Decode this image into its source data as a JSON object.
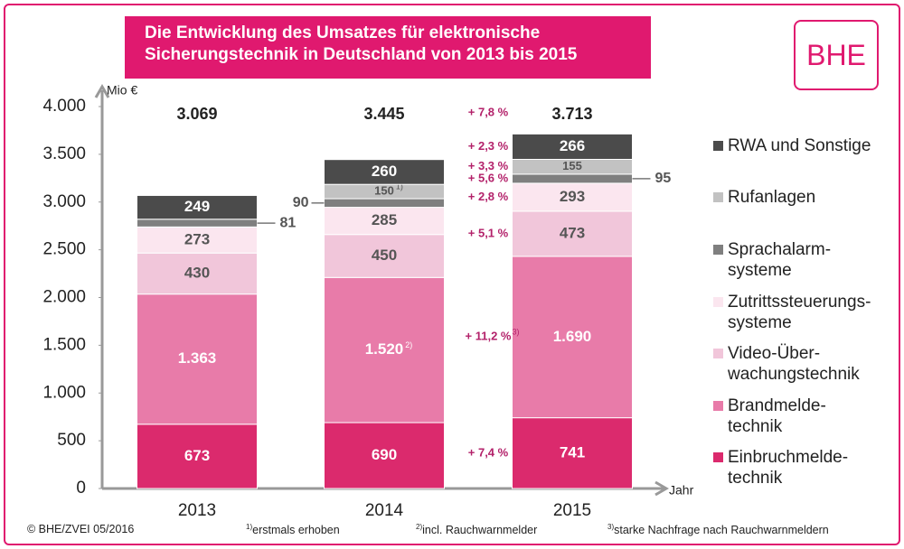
{
  "chart_data": {
    "type": "stacked-bar",
    "title": "Die Entwicklung des Umsatzes für elektronische\nSicherungstechnik in Deutschland von 2013 bis 2015",
    "logo": "BHE",
    "y_axis_label": "Mio €",
    "x_axis_label": "Jahr",
    "categories": [
      "2013",
      "2014",
      "2015"
    ],
    "ylim": [
      0,
      4000
    ],
    "yticks": [
      0,
      500,
      {
        "value": 1000,
        "label": "1.000"
      },
      {
        "value": 1500,
        "label": "1.500"
      },
      {
        "value": 2000,
        "label": "2.000"
      },
      {
        "value": 2500,
        "label": "2.500"
      },
      {
        "value": 3000,
        "label": "3.000"
      },
      {
        "value": 3500,
        "label": "3.500"
      },
      {
        "value": 4000,
        "label": "4.000"
      }
    ],
    "totals": {
      "values": [
        3069,
        3445,
        3713
      ],
      "value_labels": [
        "3.069",
        "3.445",
        "3.713"
      ],
      "growth": "+ 7,8 %"
    },
    "series": [
      {
        "name": "Einbruchmelde-\ntechnik",
        "color": "#db2a6d",
        "values": [
          673,
          690,
          741
        ],
        "growth": "+ 7,4 %"
      },
      {
        "name": "Brandmelde-\ntechnik",
        "color": "#e87ba9",
        "values": [
          1363,
          1520,
          1690
        ],
        "value_labels": [
          "1.363",
          "1.520",
          "1.690"
        ],
        "value_notes": [
          null,
          "2)",
          null
        ],
        "growth": "+ 11,2 %",
        "growth_note": "3)"
      },
      {
        "name": "Video-Über-\nwachungstechnik",
        "color": "#f1c6da",
        "values": [
          430,
          450,
          473
        ],
        "growth": "+ 5,1 %"
      },
      {
        "name": "Zutrittssteuerungs-\nsysteme",
        "color": "#fbe6ef",
        "values": [
          273,
          285,
          293
        ],
        "growth": "+ 2,8 %"
      },
      {
        "name": "Sprachalarm-\nsysteme",
        "color": "#7f7f7f",
        "values": [
          81,
          90,
          95
        ],
        "growth": "+ 5,6 %"
      },
      {
        "name": "Rufanlagen",
        "color": "#c2c2c2",
        "values": [
          null,
          150,
          155
        ],
        "value_notes": [
          null,
          "1)",
          null
        ],
        "growth": "+ 3,3 %"
      },
      {
        "name": "RWA und Sonstige",
        "color": "#4b4b4b",
        "values": [
          249,
          260,
          266
        ],
        "growth": "+ 2,3 %"
      }
    ],
    "footer": {
      "source": "© BHE/ZVEI 05/2016",
      "notes": [
        {
          "mark": "1)",
          "text": "erstmals erhoben"
        },
        {
          "mark": "2)",
          "text": "incl. Rauchwarnmelder"
        },
        {
          "mark": "3)",
          "text": "starke Nachfrage nach Rauchwarnmeldern"
        }
      ]
    }
  }
}
